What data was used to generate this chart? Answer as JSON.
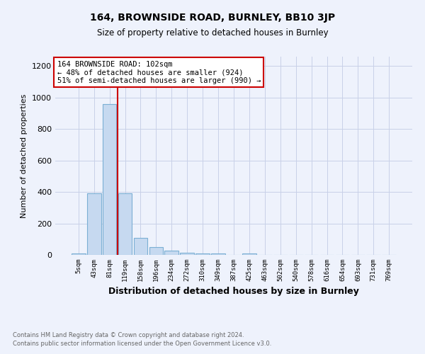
{
  "title1": "164, BROWNSIDE ROAD, BURNLEY, BB10 3JP",
  "title2": "Size of property relative to detached houses in Burnley",
  "xlabel": "Distribution of detached houses by size in Burnley",
  "ylabel": "Number of detached properties",
  "footnote1": "Contains HM Land Registry data © Crown copyright and database right 2024.",
  "footnote2": "Contains public sector information licensed under the Open Government Licence v3.0.",
  "annotation_line1": "164 BROWNSIDE ROAD: 102sqm",
  "annotation_line2": "← 48% of detached houses are smaller (924)",
  "annotation_line3": "51% of semi-detached houses are larger (990) →",
  "bar_labels": [
    "5sqm",
    "43sqm",
    "81sqm",
    "119sqm",
    "158sqm",
    "196sqm",
    "234sqm",
    "272sqm",
    "310sqm",
    "349sqm",
    "387sqm",
    "425sqm",
    "463sqm",
    "502sqm",
    "540sqm",
    "578sqm",
    "616sqm",
    "654sqm",
    "693sqm",
    "731sqm",
    "769sqm"
  ],
  "bar_values": [
    10,
    390,
    960,
    390,
    110,
    50,
    25,
    15,
    10,
    10,
    0,
    10,
    0,
    0,
    0,
    0,
    0,
    0,
    0,
    0,
    0
  ],
  "bar_color": "#c6d9f0",
  "bar_edge_color": "#7bafd4",
  "red_line_x": 2.5,
  "red_line_color": "#cc0000",
  "ylim": [
    0,
    1260
  ],
  "yticks": [
    0,
    200,
    400,
    600,
    800,
    1000,
    1200
  ],
  "annotation_box_color": "#ffffff",
  "annotation_box_edge": "#cc0000",
  "bg_color": "#eef2fc",
  "grid_color": "#c8d0e8"
}
